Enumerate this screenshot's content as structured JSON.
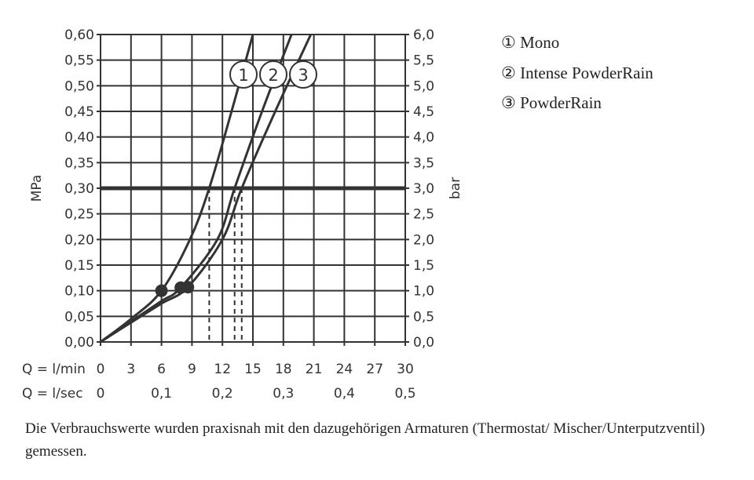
{
  "chart_data": {
    "type": "line",
    "ylabel_left": "MPa",
    "ylabel_right": "bar",
    "ylim": [
      0,
      0.6
    ],
    "xlim": [
      0,
      30
    ],
    "yticks_left": [
      "0,00",
      "0,05",
      "0,10",
      "0,15",
      "0,20",
      "0,25",
      "0,30",
      "0,35",
      "0,40",
      "0,45",
      "0,50",
      "0,55",
      "0,60"
    ],
    "yticks_right": [
      "0,0",
      "0,5",
      "1,0",
      "1,5",
      "2,0",
      "2,5",
      "3,0",
      "3,5",
      "4,0",
      "4,5",
      "5,0",
      "5,5",
      "6,0"
    ],
    "x_row1_label": "Q = l/min",
    "xticks_lmin": [
      "0",
      "3",
      "6",
      "9",
      "12",
      "15",
      "18",
      "21",
      "24",
      "27",
      "30"
    ],
    "x_row2_label": "Q = l/sec",
    "xticks_lsec": [
      "0",
      "0,1",
      "0,2",
      "0,3",
      "0,4",
      "0,5"
    ],
    "grid": true,
    "reference_line_mpa": 0.3,
    "series": [
      {
        "name": "Mono",
        "marker": "1",
        "points": [
          [
            0,
            0
          ],
          [
            3,
            0.045
          ],
          [
            6,
            0.1
          ],
          [
            8.8,
            0.2
          ],
          [
            10.7,
            0.3
          ],
          [
            12.9,
            0.45
          ],
          [
            15,
            0.6
          ]
        ],
        "dot": [
          6,
          0.1
        ],
        "at_reference": 10.7
      },
      {
        "name": "Intense PowderRain",
        "marker": "2",
        "points": [
          [
            0,
            0
          ],
          [
            3,
            0.04
          ],
          [
            6,
            0.08
          ],
          [
            7.9,
            0.106
          ],
          [
            11.5,
            0.2
          ],
          [
            13.2,
            0.3
          ],
          [
            15.9,
            0.45
          ],
          [
            18.8,
            0.6
          ]
        ],
        "dot": [
          7.9,
          0.106
        ],
        "at_reference": 13.2
      },
      {
        "name": "PowderRain",
        "marker": "3",
        "points": [
          [
            0,
            0
          ],
          [
            3,
            0.038
          ],
          [
            6,
            0.075
          ],
          [
            8.6,
            0.107
          ],
          [
            12,
            0.2
          ],
          [
            13.9,
            0.3
          ],
          [
            17.2,
            0.45
          ],
          [
            20.7,
            0.6
          ]
        ],
        "dot": [
          8.6,
          0.107
        ],
        "at_reference": 13.9
      }
    ],
    "legend": [
      {
        "symbol": "①",
        "label": "Mono"
      },
      {
        "symbol": "②",
        "label": "Intense PowderRain"
      },
      {
        "symbol": "③",
        "label": "PowderRain"
      }
    ],
    "legend_position": "right"
  },
  "caption": "Die Verbrauchswerte wurden praxisnah mit den dazugehörigen Armaturen (Thermostat/ Mischer/Unterputzventil) gemessen."
}
